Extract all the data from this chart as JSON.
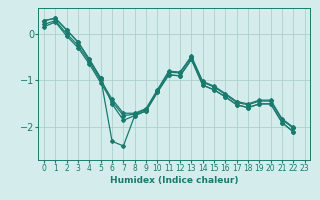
{
  "xlabel": "Humidex (Indice chaleur)",
  "bg_color": "#d4edec",
  "grid_color": "#aed0cc",
  "line_color": "#1a7a6e",
  "xlim": [
    -0.5,
    23.5
  ],
  "ylim": [
    -2.7,
    0.55
  ],
  "yticks": [
    0,
    -1,
    -2
  ],
  "xticks": [
    0,
    1,
    2,
    3,
    4,
    5,
    6,
    7,
    8,
    9,
    10,
    11,
    12,
    13,
    14,
    15,
    16,
    17,
    18,
    19,
    20,
    21,
    22,
    23
  ],
  "series": [
    [
      0.28,
      0.33,
      0.08,
      -0.18,
      -0.55,
      -0.95,
      -2.3,
      -2.4,
      -1.75,
      -1.65,
      -1.25,
      -0.88,
      -0.9,
      -0.55,
      -1.1,
      -1.2,
      -1.35,
      -1.52,
      -1.58,
      -1.5,
      -1.5,
      -1.9,
      -2.1
    ],
    [
      0.28,
      0.33,
      0.08,
      -0.18,
      -0.55,
      -0.95,
      -1.5,
      -1.85,
      -1.75,
      -1.65,
      -1.25,
      -0.88,
      -0.9,
      -0.55,
      -1.1,
      -1.2,
      -1.35,
      -1.52,
      -1.58,
      -1.5,
      -1.5,
      -1.9,
      -2.1
    ],
    [
      0.2,
      0.28,
      0.0,
      -0.25,
      -0.6,
      -1.0,
      -1.4,
      -1.7,
      -1.7,
      -1.6,
      -1.2,
      -0.8,
      -0.82,
      -0.48,
      -1.02,
      -1.12,
      -1.28,
      -1.45,
      -1.5,
      -1.42,
      -1.42,
      -1.82,
      -2.0
    ],
    [
      0.15,
      0.25,
      -0.05,
      -0.3,
      -0.65,
      -1.05,
      -1.45,
      -1.75,
      -1.72,
      -1.62,
      -1.22,
      -0.82,
      -0.84,
      -0.5,
      -1.04,
      -1.14,
      -1.3,
      -1.47,
      -1.52,
      -1.44,
      -1.44,
      -1.84,
      -2.02
    ]
  ]
}
